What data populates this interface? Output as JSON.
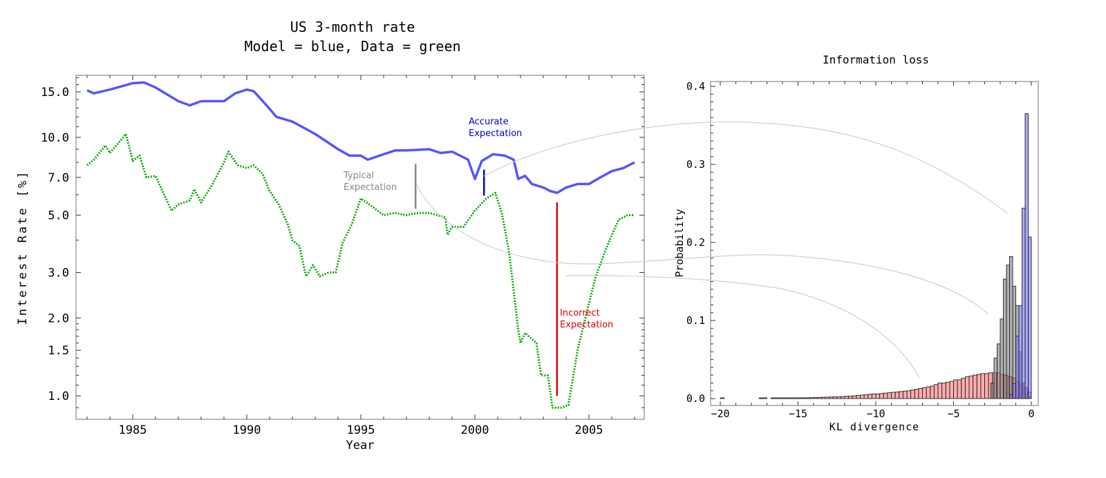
{
  "chart_data": [
    {
      "type": "line",
      "title": [
        "US 3-month rate",
        "Model = blue, Data = green"
      ],
      "xlabel": "Year",
      "ylabel": "Interest Rate [%]",
      "xlim": [
        1982.5,
        2007.5
      ],
      "ylim": [
        0.81,
        17.5
      ],
      "yscale": "log",
      "xticks": [
        1985,
        1990,
        1995,
        2000,
        2005
      ],
      "yticks": [
        "1.0",
        "1.5",
        "2.0",
        "3.0",
        "5.0",
        "7.0",
        "10.0",
        "15.0"
      ],
      "grid": false,
      "series": [
        {
          "color": "#5555ff",
          "style": "solid",
          "x": [
            1983.0,
            1983.3,
            1984.0,
            1985.0,
            1985.5,
            1986.0,
            1987.0,
            1987.5,
            1988.0,
            1989.0,
            1989.5,
            1990.0,
            1990.3,
            1991.0,
            1991.3,
            1992.0,
            1993.0,
            1994.0,
            1994.5,
            1995.0,
            1995.3,
            1996.0,
            1996.5,
            1997.0,
            1998.0,
            1998.5,
            1999.0,
            1999.7,
            2000.0,
            2000.3,
            2000.8,
            2001.3,
            2001.7,
            2001.9,
            2002.2,
            2002.5,
            2003.0,
            2003.3,
            2003.6,
            2004.0,
            2004.5,
            2005.0,
            2005.5,
            2006.0,
            2006.5,
            2007.0
          ],
          "y": [
            15.2,
            14.8,
            15.3,
            16.2,
            16.3,
            15.6,
            13.8,
            13.3,
            13.8,
            13.8,
            14.8,
            15.3,
            15.1,
            12.9,
            12.0,
            11.5,
            10.3,
            9.0,
            8.5,
            8.5,
            8.2,
            8.6,
            8.9,
            8.9,
            9.0,
            8.7,
            8.8,
            8.2,
            6.9,
            8.1,
            8.6,
            8.5,
            8.2,
            6.9,
            7.1,
            6.6,
            6.4,
            6.2,
            6.1,
            6.4,
            6.6,
            6.6,
            7.0,
            7.4,
            7.6,
            8.0
          ]
        },
        {
          "color": "#00aa00",
          "style": "dotted",
          "x": [
            1983.0,
            1983.3,
            1983.8,
            1984.0,
            1984.5,
            1984.7,
            1985.0,
            1985.3,
            1985.6,
            1986.0,
            1986.3,
            1986.7,
            1987.0,
            1987.5,
            1987.7,
            1988.0,
            1988.5,
            1989.0,
            1989.2,
            1989.6,
            1990.0,
            1990.3,
            1990.7,
            1991.0,
            1991.4,
            1991.8,
            1992.0,
            1992.3,
            1992.6,
            1992.9,
            1993.2,
            1993.6,
            1993.9,
            1994.2,
            1994.6,
            1995.0,
            1995.5,
            1996.0,
            1996.5,
            1997.0,
            1997.5,
            1998.0,
            1998.7,
            1998.8,
            1999.0,
            1999.5,
            2000.0,
            2000.5,
            2000.9,
            2001.2,
            2001.5,
            2001.9,
            2002.0,
            2002.2,
            2002.7,
            2002.9,
            2003.2,
            2003.4,
            2003.8,
            2004.1,
            2004.5,
            2004.9,
            2005.3,
            2005.8,
            2006.3,
            2006.7,
            2007.0
          ],
          "y": [
            7.8,
            8.2,
            9.3,
            8.7,
            9.8,
            10.3,
            8.1,
            8.5,
            7.0,
            7.1,
            6.2,
            5.2,
            5.5,
            5.7,
            6.3,
            5.6,
            6.6,
            8.0,
            8.8,
            7.8,
            7.6,
            7.8,
            7.2,
            6.2,
            5.5,
            4.6,
            4.0,
            3.8,
            2.9,
            3.2,
            2.9,
            3.0,
            3.0,
            3.9,
            4.6,
            5.8,
            5.4,
            5.0,
            5.1,
            5.0,
            5.1,
            5.1,
            4.9,
            4.2,
            4.5,
            4.5,
            5.2,
            5.8,
            6.1,
            5.0,
            3.6,
            1.8,
            1.6,
            1.75,
            1.6,
            1.2,
            1.2,
            0.9,
            0.9,
            0.92,
            1.5,
            2.1,
            2.9,
            3.8,
            4.8,
            5.0,
            5.0
          ]
        }
      ],
      "annotations": [
        {
          "text": [
            "Typical",
            "Expectation"
          ],
          "color": "#888888",
          "x": 1997.4,
          "y_range": [
            5.3,
            7.9
          ]
        },
        {
          "text": [
            "Accurate",
            "Expectation"
          ],
          "color": "#0000cc",
          "x": 2000.4,
          "y_range": [
            5.95,
            7.5
          ]
        },
        {
          "text": [
            "Incorrect",
            "Expectation"
          ],
          "color": "#dd0000",
          "x": 2003.6,
          "y_range": [
            1.0,
            5.6
          ]
        }
      ]
    },
    {
      "type": "bar",
      "subtype": "histogram",
      "title": "Information loss",
      "xlabel": "KL divergence",
      "ylabel": "Probability",
      "xlim": [
        -20.6,
        0.2
      ],
      "ylim": [
        -0.008,
        0.405
      ],
      "xticks": [
        "-20",
        "-15",
        "-10",
        "-5",
        "0"
      ],
      "yticks": [
        "0.0",
        "0.1",
        "0.2",
        "0.3",
        "0.4"
      ],
      "grid": false,
      "series": [
        {
          "color": "#ff7777",
          "bin_start": -16,
          "bin_width": 0.25,
          "values": [
            0.0005,
            0.0005,
            0.0008,
            0.0008,
            0.001,
            0.001,
            0.001,
            0.0012,
            0.0013,
            0.0015,
            0.0017,
            0.0019,
            0.002,
            0.0022,
            0.0024,
            0.0026,
            0.003,
            0.0032,
            0.0035,
            0.004,
            0.0045,
            0.005,
            0.0055,
            0.006,
            0.006,
            0.0065,
            0.007,
            0.0075,
            0.008,
            0.0085,
            0.009,
            0.0095,
            0.01,
            0.011,
            0.012,
            0.013,
            0.014,
            0.015,
            0.016,
            0.018,
            0.02,
            0.02,
            0.021,
            0.022,
            0.024,
            0.024,
            0.026,
            0.028,
            0.029,
            0.03,
            0.031,
            0.032,
            0.032,
            0.033,
            0.033,
            0.033,
            0.031,
            0.03,
            0.028,
            0.026,
            0.022,
            0.018,
            0.014,
            0.008
          ]
        },
        {
          "color": "#ff7777",
          "bin_start": -20,
          "bin_width": 0.25,
          "values": [
            0.0003,
            0,
            0,
            0,
            0,
            0,
            0,
            0,
            0,
            0,
            0.0003,
            0.0003,
            0,
            0.0003,
            0.0003,
            0.0003
          ]
        },
        {
          "color": "#808080",
          "bin_start": -2.6,
          "bin_width": 0.2,
          "values": [
            0.02,
            0.052,
            0.07,
            0.102,
            0.153,
            0.171,
            0.182,
            0.144,
            0.119,
            0.06,
            0.02,
            0.005,
            0.002
          ]
        },
        {
          "color": "#7070ff",
          "bin_start": -1.4,
          "bin_width": 0.2,
          "values": [
            0.005,
            0.019,
            0.08,
            0.119,
            0.244,
            0.365,
            0.207
          ]
        }
      ]
    }
  ]
}
